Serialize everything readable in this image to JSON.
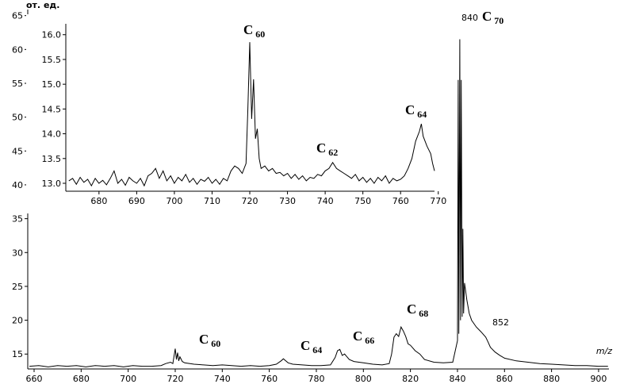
{
  "chart_data": [
    {
      "type": "line",
      "ylabel": "от. ед.",
      "xlabel": "m/z",
      "color": "#000000",
      "xlim": [
        657.3,
        904.4
      ],
      "ylim": [
        12.8,
        65.9
      ],
      "xticks": [
        660,
        680,
        700,
        720,
        740,
        760,
        780,
        800,
        820,
        840,
        860,
        880,
        900
      ],
      "yticks": [
        15,
        20,
        25,
        30,
        35,
        40,
        45,
        50,
        55,
        60,
        65
      ],
      "x": [
        658,
        662,
        666,
        670,
        674,
        678,
        682,
        686,
        690,
        694,
        698,
        702,
        706,
        710,
        714,
        716,
        718,
        719,
        720,
        720.5,
        721,
        721.5,
        722,
        723,
        724,
        728,
        732,
        736,
        740,
        744,
        748,
        752,
        756,
        760,
        763,
        765,
        766,
        767,
        768,
        770,
        774,
        778,
        782,
        786,
        788,
        789,
        790,
        791,
        792,
        793,
        794,
        796,
        800,
        804,
        808,
        811,
        812,
        813,
        814,
        815,
        816,
        817,
        818,
        819,
        820,
        822,
        824,
        826,
        830,
        834,
        838,
        840,
        840.3,
        840.6,
        841,
        841.3,
        841.6,
        842,
        842.3,
        842.6,
        843,
        844,
        845,
        846,
        848,
        850,
        852,
        853,
        854,
        856,
        858,
        860,
        865,
        870,
        875,
        880,
        885,
        890,
        895,
        900,
        904
      ],
      "values": [
        13.2,
        13.3,
        13.1,
        13.3,
        13.2,
        13.3,
        13.1,
        13.3,
        13.2,
        13.3,
        13.1,
        13.3,
        13.2,
        13.2,
        13.3,
        13.6,
        13.8,
        13.6,
        15.8,
        14.2,
        15.2,
        14.0,
        14.6,
        13.9,
        13.7,
        13.5,
        13.4,
        13.3,
        13.4,
        13.3,
        13.2,
        13.3,
        13.2,
        13.3,
        13.5,
        14.0,
        14.3,
        14.0,
        13.7,
        13.5,
        13.4,
        13.3,
        13.3,
        13.4,
        14.5,
        15.5,
        15.7,
        14.8,
        15.0,
        14.6,
        14.2,
        13.9,
        13.7,
        13.5,
        13.4,
        13.6,
        15.0,
        17.5,
        18.0,
        17.6,
        19.0,
        18.4,
        17.6,
        16.5,
        16.3,
        15.5,
        15.0,
        14.2,
        13.8,
        13.7,
        13.8,
        17.0,
        55.5,
        18,
        61.5,
        20,
        55.5,
        20.5,
        33.5,
        21,
        25.5,
        23,
        21,
        20.0,
        19.0,
        18.3,
        17.5,
        16.8,
        16.0,
        15.3,
        14.8,
        14.4,
        14.0,
        13.8,
        13.6,
        13.5,
        13.4,
        13.3,
        13.3,
        13.2,
        13.2
      ],
      "annotations": [
        {
          "text": "C",
          "subscript": "60"
        },
        {
          "text": "C",
          "subscript": "64"
        },
        {
          "text": "C",
          "subscript": "66"
        },
        {
          "text": "C",
          "subscript": "68"
        },
        {
          "text": "840"
        },
        {
          "text": "C",
          "subscript": "70"
        },
        {
          "text": "852"
        }
      ]
    },
    {
      "type": "line",
      "color": "#000000",
      "xlim": [
        671.2,
        769
      ],
      "ylim": [
        12.84,
        16.22
      ],
      "xticks": [
        680,
        690,
        700,
        710,
        720,
        730,
        740,
        750,
        760,
        770
      ],
      "yticks": [
        {
          "value": 13,
          "label": "13.0"
        },
        13.5,
        {
          "value": 14,
          "label": "14.0"
        },
        14.5,
        {
          "value": 15,
          "label": "15.0"
        },
        15.5,
        {
          "value": 16,
          "label": "16.0"
        }
      ],
      "x": [
        672,
        673,
        674,
        675,
        676,
        677,
        678,
        679,
        680,
        681,
        682,
        683,
        684,
        685,
        686,
        687,
        688,
        689,
        690,
        691,
        692,
        693,
        694,
        695,
        696,
        697,
        698,
        699,
        700,
        701,
        702,
        703,
        704,
        705,
        706,
        707,
        708,
        709,
        710,
        711,
        712,
        713,
        714,
        715,
        716,
        717,
        718,
        719,
        719.5,
        720,
        720.5,
        721,
        721.5,
        722,
        722.5,
        723,
        724,
        725,
        726,
        727,
        728,
        729,
        730,
        731,
        732,
        733,
        734,
        735,
        736,
        737,
        738,
        739,
        740,
        741,
        742,
        743,
        744,
        745,
        746,
        747,
        748,
        749,
        750,
        751,
        752,
        753,
        754,
        755,
        756,
        757,
        758,
        759,
        760,
        761,
        762,
        763,
        764,
        765,
        765.5,
        766,
        767,
        768,
        768.5,
        769
      ],
      "values": [
        13.05,
        13.1,
        12.98,
        13.12,
        13.02,
        13.08,
        12.95,
        13.1,
        13.0,
        13.06,
        12.97,
        13.1,
        13.25,
        13.0,
        13.08,
        12.96,
        13.12,
        13.05,
        13.0,
        13.1,
        12.95,
        13.15,
        13.2,
        13.3,
        13.1,
        13.25,
        13.05,
        13.15,
        13.0,
        13.12,
        13.05,
        13.18,
        13.02,
        13.1,
        12.98,
        13.08,
        13.04,
        13.12,
        13.0,
        13.08,
        12.98,
        13.1,
        13.05,
        13.25,
        13.35,
        13.3,
        13.2,
        13.4,
        14.5,
        15.85,
        14.3,
        15.1,
        13.9,
        14.1,
        13.5,
        13.3,
        13.35,
        13.25,
        13.3,
        13.2,
        13.22,
        13.15,
        13.2,
        13.1,
        13.18,
        13.08,
        13.15,
        13.05,
        13.12,
        13.1,
        13.18,
        13.15,
        13.25,
        13.3,
        13.42,
        13.3,
        13.25,
        13.2,
        13.15,
        13.1,
        13.18,
        13.05,
        13.12,
        13.02,
        13.1,
        13.0,
        13.12,
        13.05,
        13.15,
        13.0,
        13.1,
        13.05,
        13.08,
        13.15,
        13.3,
        13.5,
        13.85,
        14.05,
        14.2,
        13.95,
        13.75,
        13.6,
        13.4,
        13.25
      ],
      "annotations": [
        {
          "text": "C",
          "subscript": "60"
        },
        {
          "text": "C",
          "subscript": "62"
        },
        {
          "text": "C",
          "subscript": "64"
        }
      ]
    }
  ]
}
